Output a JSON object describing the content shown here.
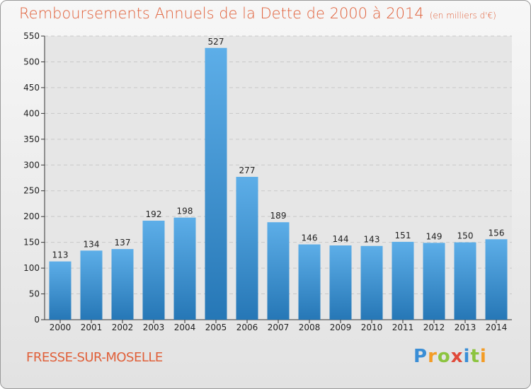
{
  "title": "Remboursements Annuels de la Dette de 2000 à 2014",
  "unit": "(en milliers d'€)",
  "town": "FRESSE-SUR-MOSELLE",
  "logo": [
    "P",
    "r",
    "o",
    "x",
    "i",
    "t",
    "i"
  ],
  "colors": {
    "bar_top": "#5daee8",
    "bar_bottom": "#2677b6",
    "title": "#e0603a"
  },
  "chart_data": {
    "type": "bar",
    "categories": [
      "2000",
      "2001",
      "2002",
      "2003",
      "2004",
      "2005",
      "2006",
      "2007",
      "2008",
      "2009",
      "2010",
      "2011",
      "2012",
      "2013",
      "2014"
    ],
    "values": [
      113,
      134,
      137,
      192,
      198,
      527,
      277,
      189,
      146,
      144,
      143,
      151,
      149,
      150,
      156
    ],
    "ylim": [
      0,
      550
    ],
    "yticks": [
      0,
      50,
      100,
      150,
      200,
      250,
      300,
      350,
      400,
      450,
      500,
      550
    ],
    "grid": true,
    "legend": "none"
  }
}
